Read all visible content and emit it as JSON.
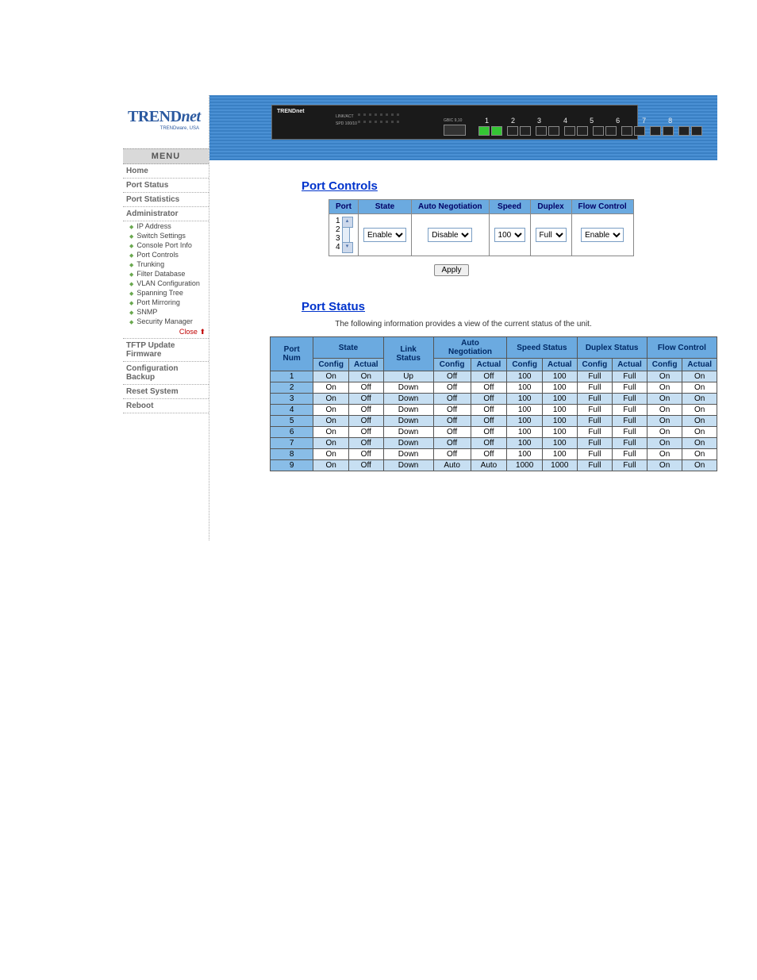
{
  "logo": {
    "main": "TREND",
    "net": "net",
    "sub": "TRENDware, USA"
  },
  "menu": {
    "header": "MENU",
    "items": [
      "Home",
      "Port Status",
      "Port Statistics",
      "Administrator"
    ],
    "admin_sub": [
      "IP Address",
      "Switch Settings",
      "Console Port Info",
      "Port Controls",
      "Trunking",
      "Filter Database",
      "VLAN Configuration",
      "Spanning Tree",
      "Port Mirroring",
      "SNMP",
      "Security Manager"
    ],
    "close": "Close",
    "items_after": [
      "TFTP Update Firmware",
      "Configuration Backup",
      "Reset System",
      "Reboot"
    ]
  },
  "switch": {
    "brand": "TRENDnet",
    "labels": {
      "link": "LINK/ACT",
      "spd": "SPD 100/10"
    },
    "gbic": "GBIC 9,10",
    "port_numbers": [
      "1",
      "2",
      "3",
      "4",
      "5",
      "6",
      "7",
      "8"
    ],
    "lit_ports": [
      1
    ]
  },
  "port_controls": {
    "title": "Port Controls",
    "headers": [
      "Port",
      "State",
      "Auto Negotiation",
      "Speed",
      "Duplex",
      "Flow Control"
    ],
    "port_options": [
      "1",
      "2",
      "3",
      "4"
    ],
    "state": "Enable",
    "auto_neg": "Disable",
    "speed": "100",
    "duplex": "Full",
    "flow": "Enable",
    "apply": "Apply"
  },
  "port_status": {
    "title": "Port Status",
    "intro": "The following information provides a view of the current status of the unit.",
    "top_headers": [
      "Port Num",
      "State",
      "Link Status",
      "Auto Negotiation",
      "Speed Status",
      "Duplex Status",
      "Flow Control"
    ],
    "sub_headers": [
      "Config",
      "Actual"
    ],
    "rows": [
      {
        "port": "1",
        "state_c": "On",
        "state_a": "On",
        "link": "Up",
        "an_c": "Off",
        "an_a": "Off",
        "sp_c": "100",
        "sp_a": "100",
        "dx_c": "Full",
        "dx_a": "Full",
        "fc_c": "On",
        "fc_a": "On"
      },
      {
        "port": "2",
        "state_c": "On",
        "state_a": "Off",
        "link": "Down",
        "an_c": "Off",
        "an_a": "Off",
        "sp_c": "100",
        "sp_a": "100",
        "dx_c": "Full",
        "dx_a": "Full",
        "fc_c": "On",
        "fc_a": "On"
      },
      {
        "port": "3",
        "state_c": "On",
        "state_a": "Off",
        "link": "Down",
        "an_c": "Off",
        "an_a": "Off",
        "sp_c": "100",
        "sp_a": "100",
        "dx_c": "Full",
        "dx_a": "Full",
        "fc_c": "On",
        "fc_a": "On"
      },
      {
        "port": "4",
        "state_c": "On",
        "state_a": "Off",
        "link": "Down",
        "an_c": "Off",
        "an_a": "Off",
        "sp_c": "100",
        "sp_a": "100",
        "dx_c": "Full",
        "dx_a": "Full",
        "fc_c": "On",
        "fc_a": "On"
      },
      {
        "port": "5",
        "state_c": "On",
        "state_a": "Off",
        "link": "Down",
        "an_c": "Off",
        "an_a": "Off",
        "sp_c": "100",
        "sp_a": "100",
        "dx_c": "Full",
        "dx_a": "Full",
        "fc_c": "On",
        "fc_a": "On"
      },
      {
        "port": "6",
        "state_c": "On",
        "state_a": "Off",
        "link": "Down",
        "an_c": "Off",
        "an_a": "Off",
        "sp_c": "100",
        "sp_a": "100",
        "dx_c": "Full",
        "dx_a": "Full",
        "fc_c": "On",
        "fc_a": "On"
      },
      {
        "port": "7",
        "state_c": "On",
        "state_a": "Off",
        "link": "Down",
        "an_c": "Off",
        "an_a": "Off",
        "sp_c": "100",
        "sp_a": "100",
        "dx_c": "Full",
        "dx_a": "Full",
        "fc_c": "On",
        "fc_a": "On"
      },
      {
        "port": "8",
        "state_c": "On",
        "state_a": "Off",
        "link": "Down",
        "an_c": "Off",
        "an_a": "Off",
        "sp_c": "100",
        "sp_a": "100",
        "dx_c": "Full",
        "dx_a": "Full",
        "fc_c": "On",
        "fc_a": "On"
      },
      {
        "port": "9",
        "state_c": "On",
        "state_a": "Off",
        "link": "Down",
        "an_c": "Auto",
        "an_a": "Auto",
        "sp_c": "1000",
        "sp_a": "1000",
        "dx_c": "Full",
        "dx_a": "Full",
        "fc_c": "On",
        "fc_a": "On"
      }
    ]
  },
  "colors": {
    "banner_bg": "#3a80c4",
    "th_bg": "#6baae0",
    "th_sub_bg": "#89bde7",
    "row_odd": "#c7dff2",
    "row_even": "#ffffff",
    "title_color": "#0033cc"
  }
}
